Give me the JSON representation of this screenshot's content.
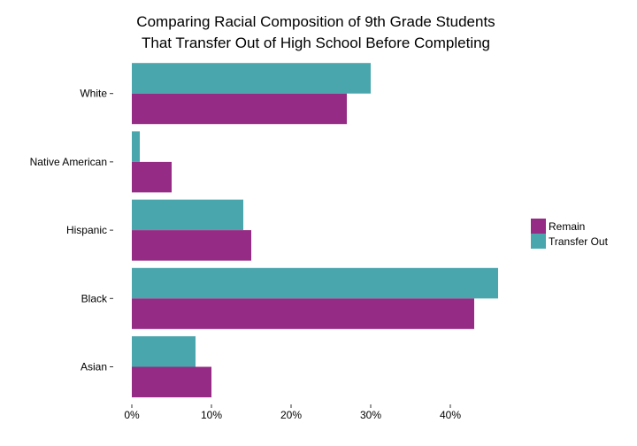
{
  "chart_data": {
    "type": "bar",
    "orientation": "horizontal",
    "title": [
      "Comparing Racial Composition of 9th Grade Students",
      "That Transfer Out of High School Before Completing"
    ],
    "xlabel": "",
    "ylabel": "",
    "categories": [
      "White",
      "Native American",
      "Hispanic",
      "Black",
      "Asian"
    ],
    "series": [
      {
        "name": "Transfer Out",
        "color": "#4aa6ad",
        "values": [
          30,
          1,
          14,
          46,
          8
        ]
      },
      {
        "name": "Remain",
        "color": "#952b84",
        "values": [
          27,
          5,
          15,
          43,
          10
        ]
      }
    ],
    "xlim": [
      0,
      48
    ],
    "xticks": [
      0,
      10,
      20,
      30,
      40
    ],
    "xtick_labels": [
      "0%",
      "10%",
      "20%",
      "30%",
      "40%"
    ],
    "grid": false,
    "legend": {
      "position": "right",
      "entries": [
        {
          "name": "Remain",
          "color": "#952b84"
        },
        {
          "name": "Transfer Out",
          "color": "#4aa6ad"
        }
      ]
    }
  }
}
